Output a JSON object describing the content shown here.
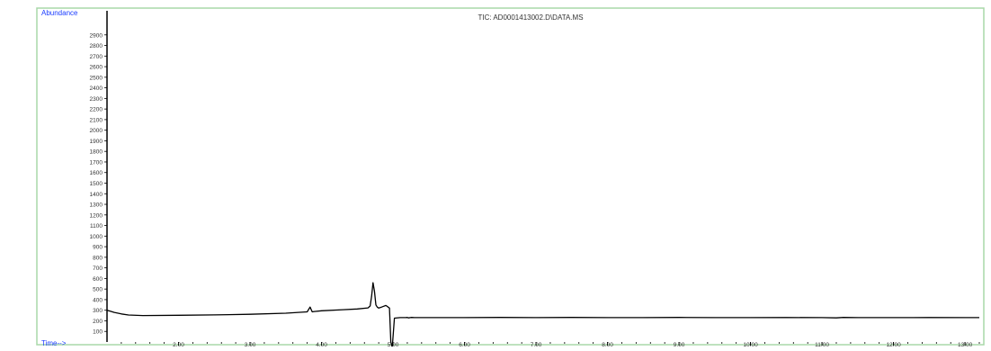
{
  "chart_data": {
    "type": "line",
    "title": "TIC: AD0001413002.D\\DATA.MS",
    "ylabel": "Abundance",
    "xlabel": "Time-->",
    "ylim": [
      0,
      3000
    ],
    "xlim": [
      1.0,
      13.2
    ],
    "y_ticks": [
      100,
      200,
      300,
      400,
      500,
      600,
      700,
      800,
      900,
      1000,
      1100,
      1200,
      1300,
      1400,
      1500,
      1600,
      1700,
      1800,
      1900,
      2000,
      2100,
      2200,
      2300,
      2400,
      2500,
      2600,
      2700,
      2800,
      2900
    ],
    "y_tick_labels": [
      "100",
      "200",
      "300",
      "400",
      "500",
      "600",
      "700",
      "800",
      "900",
      "1000",
      "1100",
      "1200",
      "1300",
      "1400",
      "1500",
      "1600",
      "1700",
      "1800",
      "1900",
      "2000",
      "2100",
      "2200",
      "2300",
      "2400",
      "2500",
      "2600",
      "2700",
      "2800",
      "2900"
    ],
    "x_ticks": [
      2,
      3,
      4,
      5,
      6,
      7,
      8,
      9,
      10,
      11,
      12,
      13
    ],
    "x_tick_labels": [
      "2.00",
      "3.00",
      "4.00",
      "5.00",
      "6.00",
      "7.00",
      "8.00",
      "9.00",
      "10.00",
      "11.00",
      "12.00",
      "13.00"
    ],
    "grid": false,
    "series": [
      {
        "color": "#000000",
        "x": [
          1.0,
          1.05,
          1.1,
          1.2,
          1.3,
          1.5,
          2.0,
          2.5,
          3.0,
          3.5,
          3.8,
          3.84,
          3.87,
          3.9,
          4.0,
          4.3,
          4.5,
          4.65,
          4.68,
          4.7,
          4.72,
          4.74,
          4.76,
          4.78,
          4.8,
          4.84,
          4.9,
          4.95,
          4.97,
          4.99,
          5.02,
          5.1,
          5.15,
          5.18,
          5.2,
          5.22,
          5.24,
          5.26,
          5.3,
          5.4,
          5.6,
          6.0,
          6.5,
          7.0,
          7.5,
          8.0,
          8.5,
          9.0,
          9.5,
          10.0,
          10.5,
          11.0,
          11.2,
          11.3,
          11.5,
          12.0,
          12.5,
          13.0,
          13.2
        ],
        "y": [
          300,
          290,
          280,
          265,
          255,
          250,
          252,
          256,
          262,
          272,
          285,
          330,
          285,
          288,
          295,
          305,
          312,
          322,
          340,
          430,
          560,
          480,
          350,
          330,
          320,
          330,
          345,
          320,
          0,
          -50,
          225,
          230,
          230,
          230,
          232,
          228,
          230,
          232,
          230,
          230,
          230,
          230,
          232,
          230,
          232,
          230,
          230,
          232,
          230,
          230,
          231,
          230,
          228,
          232,
          230,
          230,
          231,
          230,
          230
        ]
      }
    ],
    "annotations": []
  }
}
